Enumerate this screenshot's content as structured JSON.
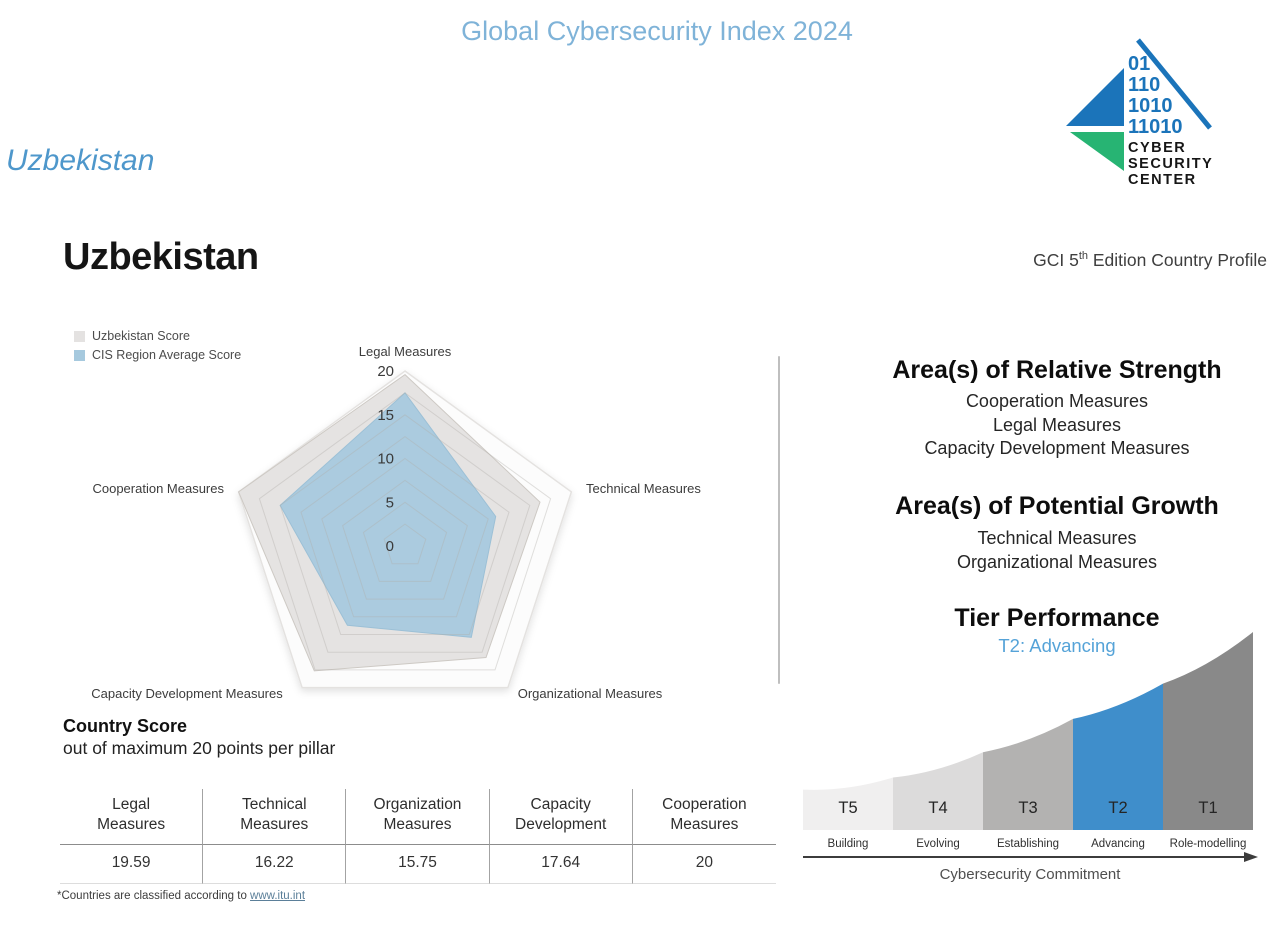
{
  "page": {
    "title": "Global Cybersecurity Index 2024",
    "country_tab": "Uzbekistan",
    "country_heading": "Uzbekistan",
    "edition": {
      "prefix": "GCI 5",
      "sup": "th",
      "suffix": " Edition Country Profile"
    }
  },
  "logo": {
    "binary_rows": [
      "01",
      "110",
      "1010",
      "11010"
    ],
    "text_lines": [
      "CYBER",
      "SECURITY",
      "CENTER"
    ],
    "blue": "#1b74ba",
    "green": "#27b473"
  },
  "chart_data": [
    {
      "type": "radar",
      "title": "",
      "categories": [
        "Legal Measures",
        "Technical Measures",
        "Organizational Measures",
        "Capacity Development Measures",
        "Cooperation Measures"
      ],
      "series": [
        {
          "name": "Uzbekistan Score",
          "values": [
            19.59,
            16.22,
            15.75,
            17.64,
            20
          ],
          "fill": "#e4e2e1",
          "stroke": "#cdc9c4"
        },
        {
          "name": "CIS Region Average Score",
          "values": [
            17.5,
            10.9,
            12.9,
            11.2,
            15.0
          ],
          "fill": "#a6c9de",
          "stroke": "#9cc0d6"
        }
      ],
      "ticks": [
        0,
        5,
        10,
        15,
        20
      ],
      "rmax": 20,
      "grid_interval": 2.5,
      "legend_position": "top-left"
    },
    {
      "type": "area",
      "title": "Tier Performance",
      "subtitle": "T2: Advancing",
      "categories": [
        "T5",
        "T4",
        "T3",
        "T2",
        "T1"
      ],
      "tier_names": [
        "Building",
        "Evolving",
        "Establishing",
        "Advancing",
        "Role-modelling"
      ],
      "colors": [
        "#f0efef",
        "#dcdbdb",
        "#b3b2b1",
        "#3f8ecb",
        "#898989"
      ],
      "heights": [
        0.2,
        0.26,
        0.385,
        0.55,
        0.725,
        0.98
      ],
      "highlight_index": 3,
      "xlabel": "Cybersecurity Commitment"
    }
  ],
  "strength": {
    "title": "Area(s) of Relative Strength",
    "items": [
      "Cooperation Measures",
      "Legal Measures",
      "Capacity Development Measures"
    ]
  },
  "growth": {
    "title": "Area(s) of Potential Growth",
    "items": [
      "Technical Measures",
      "Organizational Measures"
    ]
  },
  "tier": {
    "title": "Tier Performance",
    "current": "T2: Advancing"
  },
  "score": {
    "title": "Country Score",
    "subtitle": "out of maximum 20 points per pillar",
    "columns": [
      {
        "header": [
          "Legal",
          "Measures"
        ],
        "value": "19.59"
      },
      {
        "header": [
          "Technical",
          "Measures"
        ],
        "value": "16.22"
      },
      {
        "header": [
          "Organization",
          "Measures"
        ],
        "value": "15.75"
      },
      {
        "header": [
          "Capacity",
          "Development"
        ],
        "value": "17.64"
      },
      {
        "header": [
          "Cooperation",
          "Measures"
        ],
        "value": "20"
      }
    ]
  },
  "footnote": {
    "text": "*Countries are classified according to ",
    "link": "www.itu.int"
  }
}
